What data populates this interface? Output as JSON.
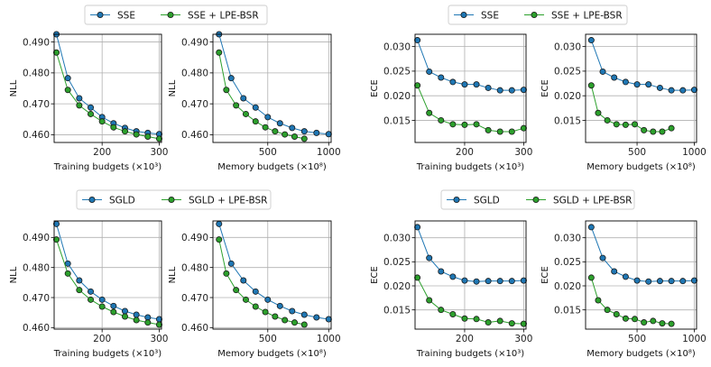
{
  "colors": {
    "baseline": "#1f77b4",
    "lpe": "#2ca02c",
    "grid": "#b0b0b0"
  },
  "legends": [
    {
      "items": [
        "SSE",
        "SSE + LPE-BSR"
      ]
    },
    {
      "items": [
        "SSE",
        "SSE + LPE-BSR"
      ]
    },
    {
      "items": [
        "SGLD",
        "SGLD + LPE-BSR"
      ]
    },
    {
      "items": [
        "SGLD",
        "SGLD + LPE-BSR"
      ]
    }
  ],
  "chart_data": [
    {
      "type": "line",
      "xlabel": "Training budgets (×10³)",
      "ylabel": "NLL",
      "xlim": [
        116,
        304
      ],
      "ylim": [
        0.4575,
        0.4925
      ],
      "xticks": [
        "200",
        "300"
      ],
      "xtick_values": [
        200,
        300
      ],
      "yticks": [
        "0.460",
        "0.470",
        "0.480",
        "0.490"
      ],
      "ytick_values": [
        0.46,
        0.47,
        0.48,
        0.49
      ],
      "grid": true,
      "series": [
        {
          "name": "SSE",
          "x": [
            120,
            140,
            160,
            180,
            200,
            220,
            240,
            260,
            280,
            300
          ],
          "y": [
            0.4925,
            0.4783,
            0.4718,
            0.4688,
            0.4657,
            0.4637,
            0.4622,
            0.4611,
            0.4606,
            0.4602
          ]
        },
        {
          "name": "SSE + LPE-BSR",
          "x": [
            120,
            140,
            160,
            180,
            200,
            220,
            240,
            260,
            280,
            300
          ],
          "y": [
            0.4866,
            0.4745,
            0.4695,
            0.4667,
            0.4643,
            0.4624,
            0.4611,
            0.4601,
            0.4594,
            0.4587
          ]
        }
      ]
    },
    {
      "type": "line",
      "xlabel": "Memory budgets (×10⁸)",
      "ylabel": "NLL",
      "xlim": [
        50,
        1020
      ],
      "ylim": [
        0.4575,
        0.4925
      ],
      "xticks": [
        "500",
        "1000"
      ],
      "xtick_values": [
        500,
        1000
      ],
      "yticks": [
        "0.460",
        "0.470",
        "0.480",
        "0.490"
      ],
      "ytick_values": [
        0.46,
        0.47,
        0.48,
        0.49
      ],
      "grid": true,
      "series": [
        {
          "name": "SSE",
          "x": [
            100,
            200,
            300,
            400,
            500,
            600,
            700,
            800,
            900,
            1000
          ],
          "y": [
            0.4925,
            0.4783,
            0.4718,
            0.4688,
            0.4657,
            0.4637,
            0.4622,
            0.4611,
            0.4606,
            0.4602
          ]
        },
        {
          "name": "SSE + LPE-BSR",
          "x": [
            100,
            160,
            240,
            320,
            400,
            480,
            560,
            640,
            720,
            800
          ],
          "y": [
            0.4866,
            0.4745,
            0.4695,
            0.4667,
            0.4643,
            0.4624,
            0.4611,
            0.4601,
            0.4594,
            0.4587
          ]
        }
      ]
    },
    {
      "type": "line",
      "xlabel": "Training budgets (×10³)",
      "ylabel": "ECE",
      "xlim": [
        116,
        304
      ],
      "ylim": [
        0.0105,
        0.0325
      ],
      "xticks": [
        "200",
        "300"
      ],
      "xtick_values": [
        200,
        300
      ],
      "yticks": [
        "0.015",
        "0.020",
        "0.025",
        "0.030"
      ],
      "ytick_values": [
        0.015,
        0.02,
        0.025,
        0.03
      ],
      "grid": true,
      "series": [
        {
          "name": "SSE",
          "x": [
            120,
            140,
            160,
            180,
            200,
            220,
            240,
            260,
            280,
            300
          ],
          "y": [
            0.0313,
            0.0249,
            0.0237,
            0.0228,
            0.0223,
            0.0223,
            0.0216,
            0.0211,
            0.0211,
            0.0212
          ]
        },
        {
          "name": "SSE + LPE-BSR",
          "x": [
            120,
            140,
            160,
            180,
            200,
            220,
            240,
            260,
            280,
            300
          ],
          "y": [
            0.0221,
            0.0165,
            0.015,
            0.0142,
            0.0141,
            0.0142,
            0.013,
            0.0127,
            0.0127,
            0.0134
          ]
        }
      ]
    },
    {
      "type": "line",
      "xlabel": "Memory budgets (×10⁸)",
      "ylabel": "ECE",
      "xlim": [
        50,
        1020
      ],
      "ylim": [
        0.0105,
        0.0325
      ],
      "xticks": [
        "500",
        "1000"
      ],
      "xtick_values": [
        500,
        1000
      ],
      "yticks": [
        "0.015",
        "0.020",
        "0.025",
        "0.030"
      ],
      "ytick_values": [
        0.015,
        0.02,
        0.025,
        0.03
      ],
      "grid": true,
      "series": [
        {
          "name": "SSE",
          "x": [
            100,
            200,
            300,
            400,
            500,
            600,
            700,
            800,
            900,
            1000
          ],
          "y": [
            0.0313,
            0.0249,
            0.0237,
            0.0228,
            0.0223,
            0.0223,
            0.0216,
            0.0211,
            0.0211,
            0.0212
          ]
        },
        {
          "name": "SSE + LPE-BSR",
          "x": [
            100,
            160,
            240,
            320,
            400,
            480,
            560,
            640,
            720,
            800
          ],
          "y": [
            0.0221,
            0.0165,
            0.015,
            0.0142,
            0.0141,
            0.0142,
            0.013,
            0.0127,
            0.0127,
            0.0134
          ]
        }
      ]
    },
    {
      "type": "line",
      "xlabel": "Training budgets (×10³)",
      "ylabel": "NLL",
      "xlim": [
        116,
        304
      ],
      "ylim": [
        0.4595,
        0.4955
      ],
      "xticks": [
        "200",
        "300"
      ],
      "xtick_values": [
        200,
        300
      ],
      "yticks": [
        "0.460",
        "0.470",
        "0.480",
        "0.490"
      ],
      "ytick_values": [
        0.46,
        0.47,
        0.48,
        0.49
      ],
      "grid": true,
      "series": [
        {
          "name": "SGLD",
          "x": [
            120,
            140,
            160,
            180,
            200,
            220,
            240,
            260,
            280,
            300
          ],
          "y": [
            0.4945,
            0.4813,
            0.4757,
            0.472,
            0.4693,
            0.4672,
            0.4655,
            0.4643,
            0.4634,
            0.4628
          ]
        },
        {
          "name": "SGLD + LPE-BSR",
          "x": [
            120,
            140,
            160,
            180,
            200,
            220,
            240,
            260,
            280,
            300
          ],
          "y": [
            0.4893,
            0.478,
            0.4725,
            0.4693,
            0.467,
            0.4652,
            0.4637,
            0.4625,
            0.4617,
            0.461
          ]
        }
      ]
    },
    {
      "type": "line",
      "xlabel": "Memory budgets (×10⁸)",
      "ylabel": "NLL",
      "xlim": [
        50,
        1020
      ],
      "ylim": [
        0.4595,
        0.4955
      ],
      "xticks": [
        "500",
        "1000"
      ],
      "xtick_values": [
        500,
        1000
      ],
      "yticks": [
        "0.460",
        "0.470",
        "0.480",
        "0.490"
      ],
      "ytick_values": [
        0.46,
        0.47,
        0.48,
        0.49
      ],
      "grid": true,
      "series": [
        {
          "name": "SGLD",
          "x": [
            100,
            200,
            300,
            400,
            500,
            600,
            700,
            800,
            900,
            1000
          ],
          "y": [
            0.4945,
            0.4813,
            0.4757,
            0.472,
            0.4693,
            0.4672,
            0.4655,
            0.4643,
            0.4634,
            0.4628
          ]
        },
        {
          "name": "SGLD + LPE-BSR",
          "x": [
            100,
            160,
            240,
            320,
            400,
            480,
            560,
            640,
            720,
            800
          ],
          "y": [
            0.4893,
            0.478,
            0.4725,
            0.4693,
            0.467,
            0.4652,
            0.4637,
            0.4625,
            0.4617,
            0.461
          ]
        }
      ]
    },
    {
      "type": "line",
      "xlabel": "Training budgets (×10³)",
      "ylabel": "ECE",
      "xlim": [
        116,
        304
      ],
      "ylim": [
        0.011,
        0.0335
      ],
      "xticks": [
        "200",
        "300"
      ],
      "xtick_values": [
        200,
        300
      ],
      "yticks": [
        "0.015",
        "0.020",
        "0.025",
        "0.030"
      ],
      "ytick_values": [
        0.015,
        0.02,
        0.025,
        0.03
      ],
      "grid": true,
      "series": [
        {
          "name": "SGLD",
          "x": [
            120,
            140,
            160,
            180,
            200,
            220,
            240,
            260,
            280,
            300
          ],
          "y": [
            0.0322,
            0.0258,
            0.023,
            0.0219,
            0.0211,
            0.0209,
            0.021,
            0.021,
            0.021,
            0.0211
          ]
        },
        {
          "name": "SGLD + LPE-BSR",
          "x": [
            120,
            140,
            160,
            180,
            200,
            220,
            240,
            260,
            280,
            300
          ],
          "y": [
            0.0217,
            0.017,
            0.015,
            0.0141,
            0.0132,
            0.0131,
            0.0124,
            0.0127,
            0.0122,
            0.0121
          ]
        }
      ]
    },
    {
      "type": "line",
      "xlabel": "Memory budgets (×10⁸)",
      "ylabel": "ECE",
      "xlim": [
        50,
        1020
      ],
      "ylim": [
        0.011,
        0.0335
      ],
      "xticks": [
        "500",
        "1000"
      ],
      "xtick_values": [
        500,
        1000
      ],
      "yticks": [
        "0.015",
        "0.020",
        "0.025",
        "0.030"
      ],
      "ytick_values": [
        0.015,
        0.02,
        0.025,
        0.03
      ],
      "grid": true,
      "series": [
        {
          "name": "SGLD",
          "x": [
            100,
            200,
            300,
            400,
            500,
            600,
            700,
            800,
            900,
            1000
          ],
          "y": [
            0.0322,
            0.0258,
            0.023,
            0.0219,
            0.0211,
            0.0209,
            0.021,
            0.021,
            0.021,
            0.0211
          ]
        },
        {
          "name": "SGLD + LPE-BSR",
          "x": [
            100,
            160,
            240,
            320,
            400,
            480,
            560,
            640,
            720,
            800
          ],
          "y": [
            0.0217,
            0.017,
            0.015,
            0.0141,
            0.0132,
            0.0131,
            0.0124,
            0.0127,
            0.0122,
            0.0121
          ]
        }
      ]
    }
  ]
}
